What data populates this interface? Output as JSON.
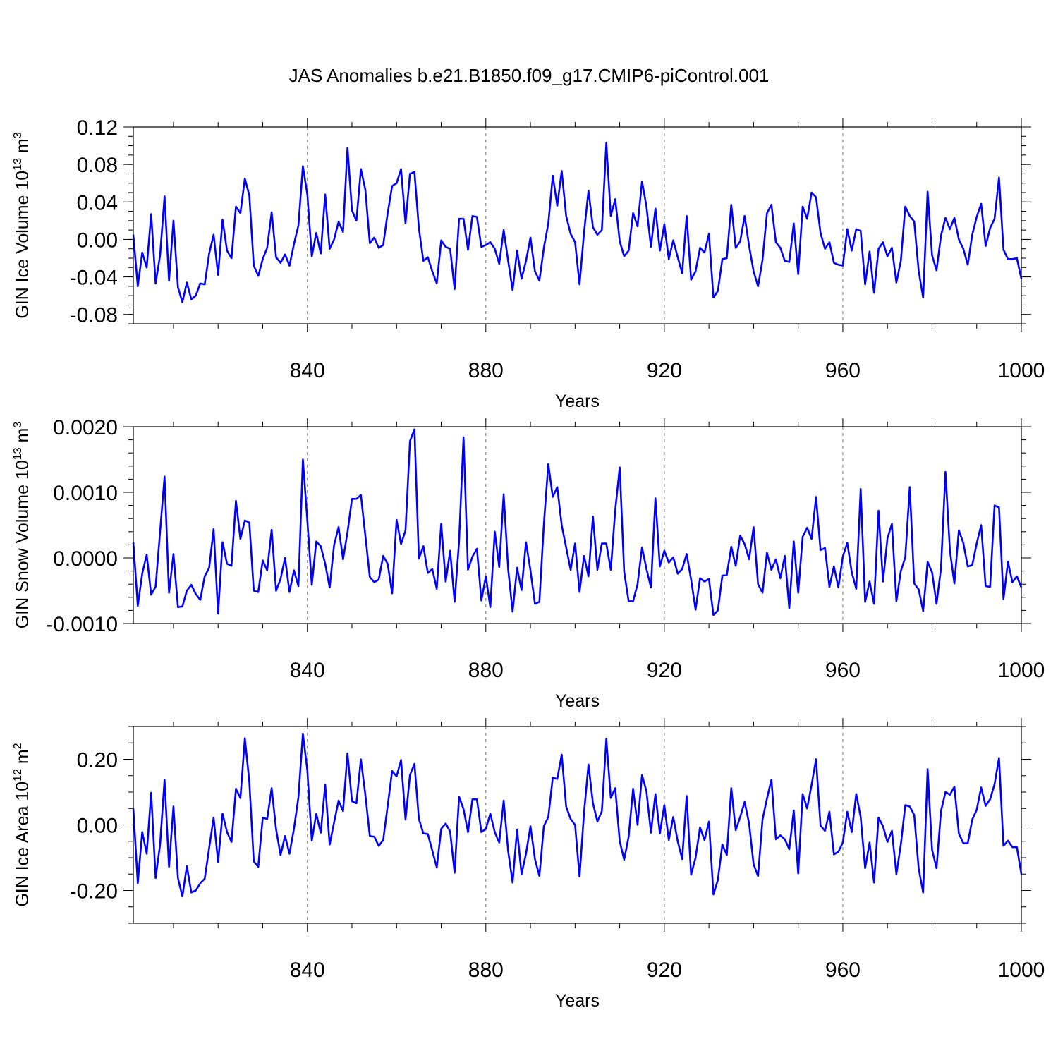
{
  "chart_data": [
    {
      "type": "line",
      "title": "JAS Anomalies b.e21.B1850.f09_g17.CMIP6-piControl.001",
      "xlabel": "Years",
      "ylabel_main": "GIN Ice Volume 10",
      "ylabel_sup": "13",
      "ylabel_unit": " m",
      "ylabel_unit_sup": "3",
      "xlim": [
        801,
        1000
      ],
      "ylim": [
        -0.09,
        0.12
      ],
      "xticks": [
        "840",
        "880",
        "920",
        "960",
        "1000"
      ],
      "yticks": [
        "0.12",
        "0.08",
        "0.04",
        "0.00",
        "-0.04",
        "-0.08"
      ],
      "series": [
        {
          "name": "GIN Ice Volume",
          "color": "#0000ff",
          "x_start": 801,
          "values": [
            0.005,
            -0.05,
            -0.014,
            -0.03,
            0.027,
            -0.047,
            -0.017,
            0.046,
            -0.044,
            0.02,
            -0.051,
            -0.067,
            -0.046,
            -0.064,
            -0.06,
            -0.047,
            -0.048,
            -0.015,
            0.005,
            -0.038,
            0.021,
            -0.012,
            -0.02,
            0.035,
            0.028,
            0.065,
            0.047,
            -0.028,
            -0.039,
            -0.021,
            -0.009,
            0.029,
            -0.019,
            -0.025,
            -0.016,
            -0.028,
            -0.005,
            0.015,
            0.078,
            0.048,
            -0.018,
            0.007,
            -0.015,
            0.048,
            -0.01,
            0.0,
            0.019,
            0.008,
            0.098,
            0.031,
            0.02,
            0.075,
            0.053,
            -0.004,
            0.002,
            -0.009,
            -0.006,
            0.028,
            0.057,
            0.06,
            0.075,
            0.017,
            0.07,
            0.072,
            0.012,
            -0.023,
            -0.019,
            -0.034,
            -0.047,
            -0.001,
            -0.008,
            -0.01,
            -0.053,
            0.022,
            0.022,
            -0.011,
            0.025,
            0.024,
            -0.008,
            -0.006,
            -0.003,
            -0.01,
            -0.026,
            0.01,
            -0.023,
            -0.054,
            -0.012,
            -0.042,
            -0.023,
            0.002,
            -0.034,
            -0.044,
            -0.009,
            0.017,
            0.068,
            0.036,
            0.073,
            0.025,
            0.006,
            -0.003,
            -0.048,
            0.007,
            0.052,
            0.013,
            0.005,
            0.01,
            0.103,
            0.025,
            0.043,
            -0.002,
            -0.018,
            -0.012,
            0.028,
            0.014,
            0.062,
            0.035,
            -0.008,
            0.033,
            -0.012,
            0.016,
            -0.021,
            -0.001,
            -0.019,
            -0.036,
            0.025,
            -0.043,
            -0.034,
            -0.009,
            -0.014,
            0.006,
            -0.062,
            -0.055,
            -0.021,
            -0.02,
            0.037,
            -0.009,
            -0.002,
            0.025,
            -0.007,
            -0.034,
            -0.05,
            -0.022,
            0.028,
            0.037,
            -0.003,
            -0.009,
            -0.023,
            -0.024,
            0.017,
            -0.037,
            0.035,
            0.022,
            0.05,
            0.045,
            0.007,
            -0.01,
            -0.003,
            -0.025,
            -0.027,
            -0.028,
            0.011,
            -0.012,
            0.011,
            0.009,
            -0.048,
            -0.013,
            -0.057,
            -0.01,
            -0.003,
            -0.018,
            -0.009,
            -0.046,
            -0.023,
            0.035,
            0.025,
            0.019,
            -0.034,
            -0.062,
            0.051,
            -0.017,
            -0.033,
            0.004,
            0.023,
            0.011,
            0.023,
            0.0,
            -0.01,
            -0.027,
            0.005,
            0.024,
            0.038,
            -0.007,
            0.012,
            0.022,
            0.066,
            -0.011,
            -0.021,
            -0.021,
            -0.02,
            -0.042
          ]
        }
      ]
    },
    {
      "type": "line",
      "title": "",
      "xlabel": "Years",
      "ylabel_main": "GIN Snow Volume 10",
      "ylabel_sup": "13",
      "ylabel_unit": " m",
      "ylabel_unit_sup": "3",
      "xlim": [
        801,
        1000
      ],
      "ylim": [
        -0.001,
        0.002
      ],
      "xticks": [
        "840",
        "880",
        "920",
        "960",
        "1000"
      ],
      "yticks": [
        "0.0020",
        "0.0010",
        "0.0000",
        "-0.0010"
      ],
      "series": [
        {
          "name": "GIN Snow Volume",
          "color": "#0000ff",
          "x_start": 801,
          "values": [
            0.00024,
            -0.00073,
            -0.00024,
            5e-05,
            -0.00056,
            -0.00044,
            0.0004,
            0.00124,
            -0.00053,
            6e-05,
            -0.00075,
            -0.00074,
            -0.0005,
            -0.00041,
            -0.00055,
            -0.00064,
            -0.00028,
            -0.00015,
            0.00044,
            -0.00085,
            0.00024,
            -9e-05,
            -0.00012,
            0.00087,
            0.00029,
            0.00057,
            0.00054,
            -0.0005,
            -0.00052,
            -4e-05,
            -0.00019,
            0.00043,
            -0.0005,
            -0.00032,
            0.0,
            -0.00052,
            -0.00019,
            -0.00043,
            0.0015,
            0.00057,
            -0.00041,
            0.00025,
            0.00018,
            -9e-05,
            -0.00045,
            0.0002,
            0.00047,
            -2e-05,
            0.00039,
            0.0009,
            0.0009,
            0.00096,
            0.00034,
            -0.00029,
            -0.00037,
            -0.00033,
            3e-05,
            -9e-05,
            -0.00054,
            0.00058,
            0.00021,
            0.00042,
            0.00178,
            0.00196,
            -1e-05,
            0.00018,
            -0.00023,
            -0.00017,
            -0.00047,
            0.00052,
            -0.00036,
            0.00011,
            -0.00067,
            0.00025,
            0.00184,
            -0.00018,
            2e-05,
            0.00014,
            -0.00065,
            -0.00028,
            -0.00075,
            0.0004,
            -0.00014,
            0.00097,
            -0.00017,
            -0.00082,
            -0.00015,
            -0.00049,
            0.00024,
            -0.00019,
            -0.0007,
            -0.00067,
            0.00051,
            0.00143,
            0.00093,
            0.00108,
            0.0005,
            0.00016,
            -0.00018,
            0.00022,
            -0.00052,
            3e-05,
            -0.00028,
            0.00063,
            -0.00018,
            0.00022,
            0.00022,
            -0.00018,
            0.00073,
            0.00138,
            -0.00021,
            -0.00066,
            -0.00066,
            -0.0004,
            0.00016,
            -0.00017,
            -0.00045,
            0.00091,
            -0.00013,
            0.00011,
            -7e-05,
            1e-05,
            -0.00024,
            -0.00017,
            6e-05,
            -0.00033,
            -0.00079,
            -0.00031,
            -0.00036,
            -0.00032,
            -0.00087,
            -0.0008,
            -0.00027,
            -0.00026,
            0.00017,
            -0.00012,
            0.00034,
            0.00021,
            -2e-05,
            0.00047,
            -0.0004,
            -0.00053,
            8e-05,
            -0.00018,
            -2e-05,
            -0.00031,
            3e-05,
            -0.00077,
            0.00025,
            -0.00053,
            0.00032,
            0.00046,
            0.00029,
            0.00093,
            0.00012,
            0.00015,
            -0.00044,
            -0.00013,
            -0.00045,
            2e-05,
            0.00023,
            -0.00022,
            -0.00047,
            0.00105,
            -0.00067,
            -0.00036,
            -0.0007,
            0.00072,
            -0.00036,
            0.0003,
            0.00052,
            -0.00066,
            -0.0002,
            1e-05,
            0.00108,
            -0.00039,
            -0.00048,
            -0.00081,
            -6e-05,
            -0.00022,
            -0.0007,
            -0.00016,
            0.00131,
            0.00011,
            -0.00039,
            0.00042,
            0.00023,
            -0.00013,
            -0.00011,
            0.00022,
            0.0005,
            -0.00043,
            -0.00044,
            0.0008,
            0.00077,
            -0.00063,
            -6e-05,
            -0.00037,
            -0.00028,
            -0.00045
          ]
        }
      ]
    },
    {
      "type": "line",
      "title": "",
      "xlabel": "Years",
      "ylabel_main": "GIN Ice Area 10",
      "ylabel_sup": "12",
      "ylabel_unit": " m",
      "ylabel_unit_sup": "2",
      "xlim": [
        801,
        1000
      ],
      "ylim": [
        -0.3,
        0.3
      ],
      "xticks": [
        "840",
        "880",
        "920",
        "960",
        "1000"
      ],
      "yticks": [
        "0.20",
        "0.00",
        "-0.20"
      ],
      "series": [
        {
          "name": "GIN Ice Area",
          "color": "#0000ff",
          "x_start": 801,
          "values": [
            0.05,
            -0.178,
            -0.022,
            -0.088,
            0.098,
            -0.162,
            -0.06,
            0.138,
            -0.128,
            0.056,
            -0.162,
            -0.218,
            -0.126,
            -0.206,
            -0.2,
            -0.178,
            -0.164,
            -0.07,
            0.022,
            -0.114,
            0.034,
            -0.022,
            -0.052,
            0.11,
            0.082,
            0.264,
            0.132,
            -0.112,
            -0.128,
            0.022,
            0.018,
            0.112,
            -0.014,
            -0.092,
            -0.034,
            -0.088,
            -0.012,
            0.084,
            0.278,
            0.166,
            -0.048,
            0.034,
            -0.024,
            0.122,
            -0.06,
            0.008,
            0.074,
            0.042,
            0.218,
            0.072,
            0.066,
            0.2,
            0.092,
            -0.034,
            -0.036,
            -0.064,
            -0.046,
            0.058,
            0.164,
            0.148,
            0.198,
            0.016,
            0.152,
            0.186,
            0.018,
            -0.026,
            -0.028,
            -0.078,
            -0.13,
            -0.012,
            0.004,
            -0.02,
            -0.146,
            0.086,
            0.048,
            -0.022,
            0.078,
            0.078,
            -0.022,
            -0.012,
            0.034,
            -0.022,
            -0.054,
            0.074,
            -0.08,
            -0.176,
            -0.014,
            -0.15,
            -0.088,
            -0.004,
            -0.104,
            -0.156,
            -0.004,
            0.024,
            0.144,
            0.14,
            0.214,
            0.056,
            0.018,
            0.0,
            -0.158,
            0.036,
            0.184,
            0.066,
            0.01,
            0.042,
            0.262,
            0.082,
            0.112,
            -0.05,
            -0.106,
            -0.036,
            0.11,
            0.0,
            0.152,
            0.102,
            -0.024,
            0.094,
            -0.026,
            0.06,
            -0.046,
            0.024,
            -0.05,
            -0.104,
            0.088,
            -0.152,
            -0.1,
            -0.008,
            -0.046,
            0.01,
            -0.212,
            -0.168,
            -0.06,
            -0.092,
            0.112,
            -0.016,
            0.024,
            0.07,
            0.004,
            -0.12,
            -0.156,
            0.016,
            0.08,
            0.138,
            -0.044,
            -0.032,
            -0.044,
            -0.074,
            0.044,
            -0.148,
            0.094,
            0.05,
            0.122,
            0.2,
            -0.002,
            -0.018,
            0.04,
            -0.09,
            -0.082,
            -0.054,
            0.04,
            -0.022,
            0.094,
            0.024,
            -0.132,
            -0.054,
            -0.176,
            0.022,
            -0.004,
            -0.052,
            -0.018,
            -0.15,
            -0.06,
            0.06,
            0.056,
            0.03,
            -0.134,
            -0.206,
            0.17,
            -0.076,
            -0.132,
            0.042,
            0.1,
            0.092,
            0.116,
            -0.026,
            -0.056,
            -0.056,
            0.016,
            0.046,
            0.114,
            0.058,
            0.078,
            0.124,
            0.204,
            -0.064,
            -0.048,
            -0.068,
            -0.068,
            -0.15
          ]
        }
      ]
    }
  ]
}
